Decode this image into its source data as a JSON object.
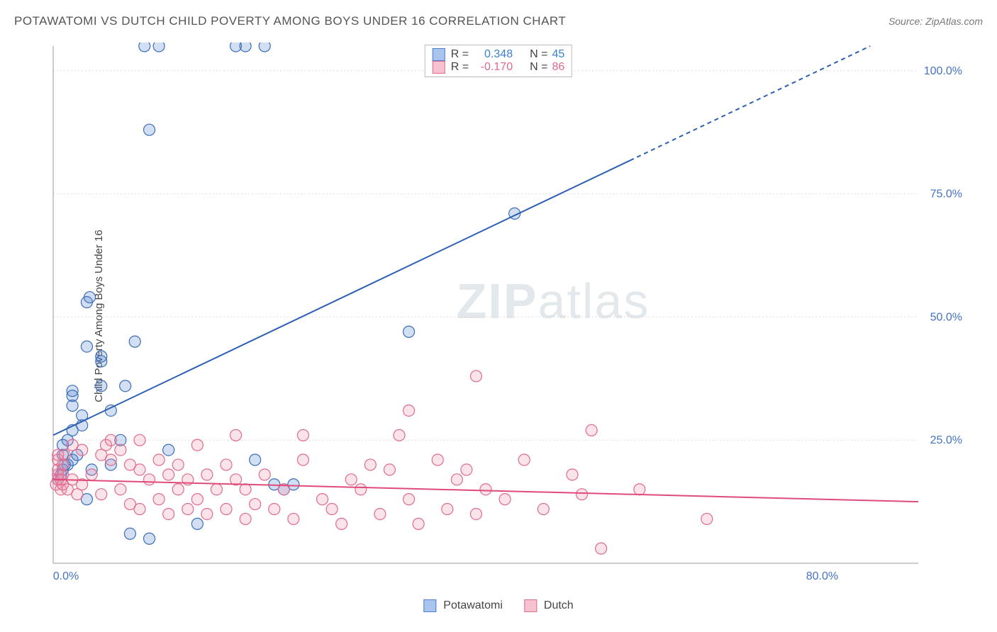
{
  "title": "POTAWATOMI VS DUTCH CHILD POVERTY AMONG BOYS UNDER 16 CORRELATION CHART",
  "source": "Source: ZipAtlas.com",
  "watermark": {
    "part1": "ZIP",
    "part2": "atlas"
  },
  "y_axis_label": "Child Poverty Among Boys Under 16",
  "chart": {
    "type": "scatter",
    "background_color": "#ffffff",
    "grid_color": "#dddddd",
    "axis_color": "#999999",
    "tick_label_color": "#4472c4",
    "xlim": [
      0,
      90
    ],
    "ylim": [
      0,
      105
    ],
    "x_ticks": [
      {
        "v": 0,
        "l": "0.0%"
      },
      {
        "v": 80,
        "l": "80.0%"
      }
    ],
    "y_ticks": [
      {
        "v": 25,
        "l": "25.0%"
      },
      {
        "v": 50,
        "l": "50.0%"
      },
      {
        "v": 75,
        "l": "75.0%"
      },
      {
        "v": 100,
        "l": "100.0%"
      }
    ],
    "marker_radius": 8,
    "marker_stroke_width": 1.2,
    "marker_fill_opacity": 0.25,
    "series": [
      {
        "name": "Potawatomi",
        "color": "#4a7fd1",
        "stroke": "#3b6db8",
        "R": "0.348",
        "N": "45",
        "trend": {
          "x1": 0,
          "y1": 26,
          "x2": 85,
          "y2": 105,
          "dash_after_x": 60,
          "line_color": "#2d5fb3",
          "width": 2
        },
        "points": [
          [
            0.5,
            17
          ],
          [
            0.8,
            18
          ],
          [
            1,
            19
          ],
          [
            1,
            22
          ],
          [
            1,
            24
          ],
          [
            1.2,
            20
          ],
          [
            1.5,
            20
          ],
          [
            1.5,
            25
          ],
          [
            2,
            21
          ],
          [
            2,
            27
          ],
          [
            2,
            32
          ],
          [
            2,
            34
          ],
          [
            2,
            35
          ],
          [
            2.5,
            22
          ],
          [
            3,
            28
          ],
          [
            3,
            30
          ],
          [
            3.5,
            13
          ],
          [
            3.5,
            44
          ],
          [
            3.5,
            53
          ],
          [
            3.8,
            54
          ],
          [
            4,
            19
          ],
          [
            5,
            36
          ],
          [
            5,
            41
          ],
          [
            5,
            42
          ],
          [
            6,
            20
          ],
          [
            6,
            31
          ],
          [
            7,
            25
          ],
          [
            7.5,
            36
          ],
          [
            8,
            6
          ],
          [
            8.5,
            45
          ],
          [
            9.5,
            105
          ],
          [
            10,
            5
          ],
          [
            10,
            88
          ],
          [
            11,
            105
          ],
          [
            12,
            23
          ],
          [
            15,
            8
          ],
          [
            19,
            105
          ],
          [
            20,
            105
          ],
          [
            21,
            21
          ],
          [
            22,
            105
          ],
          [
            23,
            16
          ],
          [
            24,
            15
          ],
          [
            25,
            16
          ],
          [
            37,
            47
          ],
          [
            48,
            71
          ]
        ]
      },
      {
        "name": "Dutch",
        "color": "#f08faa",
        "stroke": "#e06b8c",
        "R": "-0.170",
        "N": "86",
        "trend": {
          "x1": 0,
          "y1": 17,
          "x2": 90,
          "y2": 12.5,
          "line_color": "#e04b7a",
          "width": 2
        },
        "points": [
          [
            0.3,
            16
          ],
          [
            0.5,
            17
          ],
          [
            0.5,
            18
          ],
          [
            0.5,
            19
          ],
          [
            0.5,
            21
          ],
          [
            0.5,
            22
          ],
          [
            0.8,
            15
          ],
          [
            0.8,
            17
          ],
          [
            1,
            16
          ],
          [
            1,
            18
          ],
          [
            1,
            20
          ],
          [
            1.2,
            22
          ],
          [
            1.5,
            15
          ],
          [
            2,
            17
          ],
          [
            2,
            24
          ],
          [
            2.5,
            14
          ],
          [
            3,
            16
          ],
          [
            3,
            23
          ],
          [
            4,
            18
          ],
          [
            5,
            14
          ],
          [
            5,
            22
          ],
          [
            5.5,
            24
          ],
          [
            6,
            21
          ],
          [
            6,
            25
          ],
          [
            7,
            15
          ],
          [
            7,
            23
          ],
          [
            8,
            12
          ],
          [
            8,
            20
          ],
          [
            9,
            11
          ],
          [
            9,
            19
          ],
          [
            9,
            25
          ],
          [
            10,
            17
          ],
          [
            11,
            13
          ],
          [
            11,
            21
          ],
          [
            12,
            10
          ],
          [
            12,
            18
          ],
          [
            13,
            15
          ],
          [
            13,
            20
          ],
          [
            14,
            11
          ],
          [
            14,
            17
          ],
          [
            15,
            13
          ],
          [
            15,
            24
          ],
          [
            16,
            10
          ],
          [
            16,
            18
          ],
          [
            17,
            15
          ],
          [
            18,
            11
          ],
          [
            18,
            20
          ],
          [
            19,
            17
          ],
          [
            19,
            26
          ],
          [
            20,
            9
          ],
          [
            20,
            15
          ],
          [
            21,
            12
          ],
          [
            22,
            18
          ],
          [
            23,
            11
          ],
          [
            24,
            15
          ],
          [
            25,
            9
          ],
          [
            26,
            21
          ],
          [
            26,
            26
          ],
          [
            28,
            13
          ],
          [
            29,
            11
          ],
          [
            30,
            8
          ],
          [
            31,
            17
          ],
          [
            32,
            15
          ],
          [
            33,
            20
          ],
          [
            34,
            10
          ],
          [
            35,
            19
          ],
          [
            36,
            26
          ],
          [
            37,
            13
          ],
          [
            37,
            31
          ],
          [
            38,
            8
          ],
          [
            40,
            21
          ],
          [
            41,
            11
          ],
          [
            42,
            17
          ],
          [
            43,
            19
          ],
          [
            44,
            10
          ],
          [
            44,
            38
          ],
          [
            45,
            15
          ],
          [
            47,
            13
          ],
          [
            49,
            21
          ],
          [
            51,
            11
          ],
          [
            54,
            18
          ],
          [
            55,
            14
          ],
          [
            56,
            27
          ],
          [
            57,
            3
          ],
          [
            61,
            15
          ],
          [
            68,
            9
          ]
        ]
      }
    ],
    "legend_top": {
      "border_color": "#bbbbbb",
      "rows": [
        {
          "swatch": "#a9c4ed",
          "swatch_border": "#4a7fd1",
          "r_label": "R =",
          "r_val": "0.348",
          "n_label": "N =",
          "n_val": "45",
          "val_color": "#3b7fd1"
        },
        {
          "swatch": "#f6c2d0",
          "swatch_border": "#e06b8c",
          "r_label": "R =",
          "r_val": "-0.170",
          "n_label": "N =",
          "n_val": "86",
          "val_color": "#e06b8c"
        }
      ]
    },
    "legend_bottom": [
      {
        "swatch": "#a9c4ed",
        "swatch_border": "#4a7fd1",
        "label": "Potawatomi"
      },
      {
        "swatch": "#f6c2d0",
        "swatch_border": "#e06b8c",
        "label": "Dutch"
      }
    ]
  }
}
